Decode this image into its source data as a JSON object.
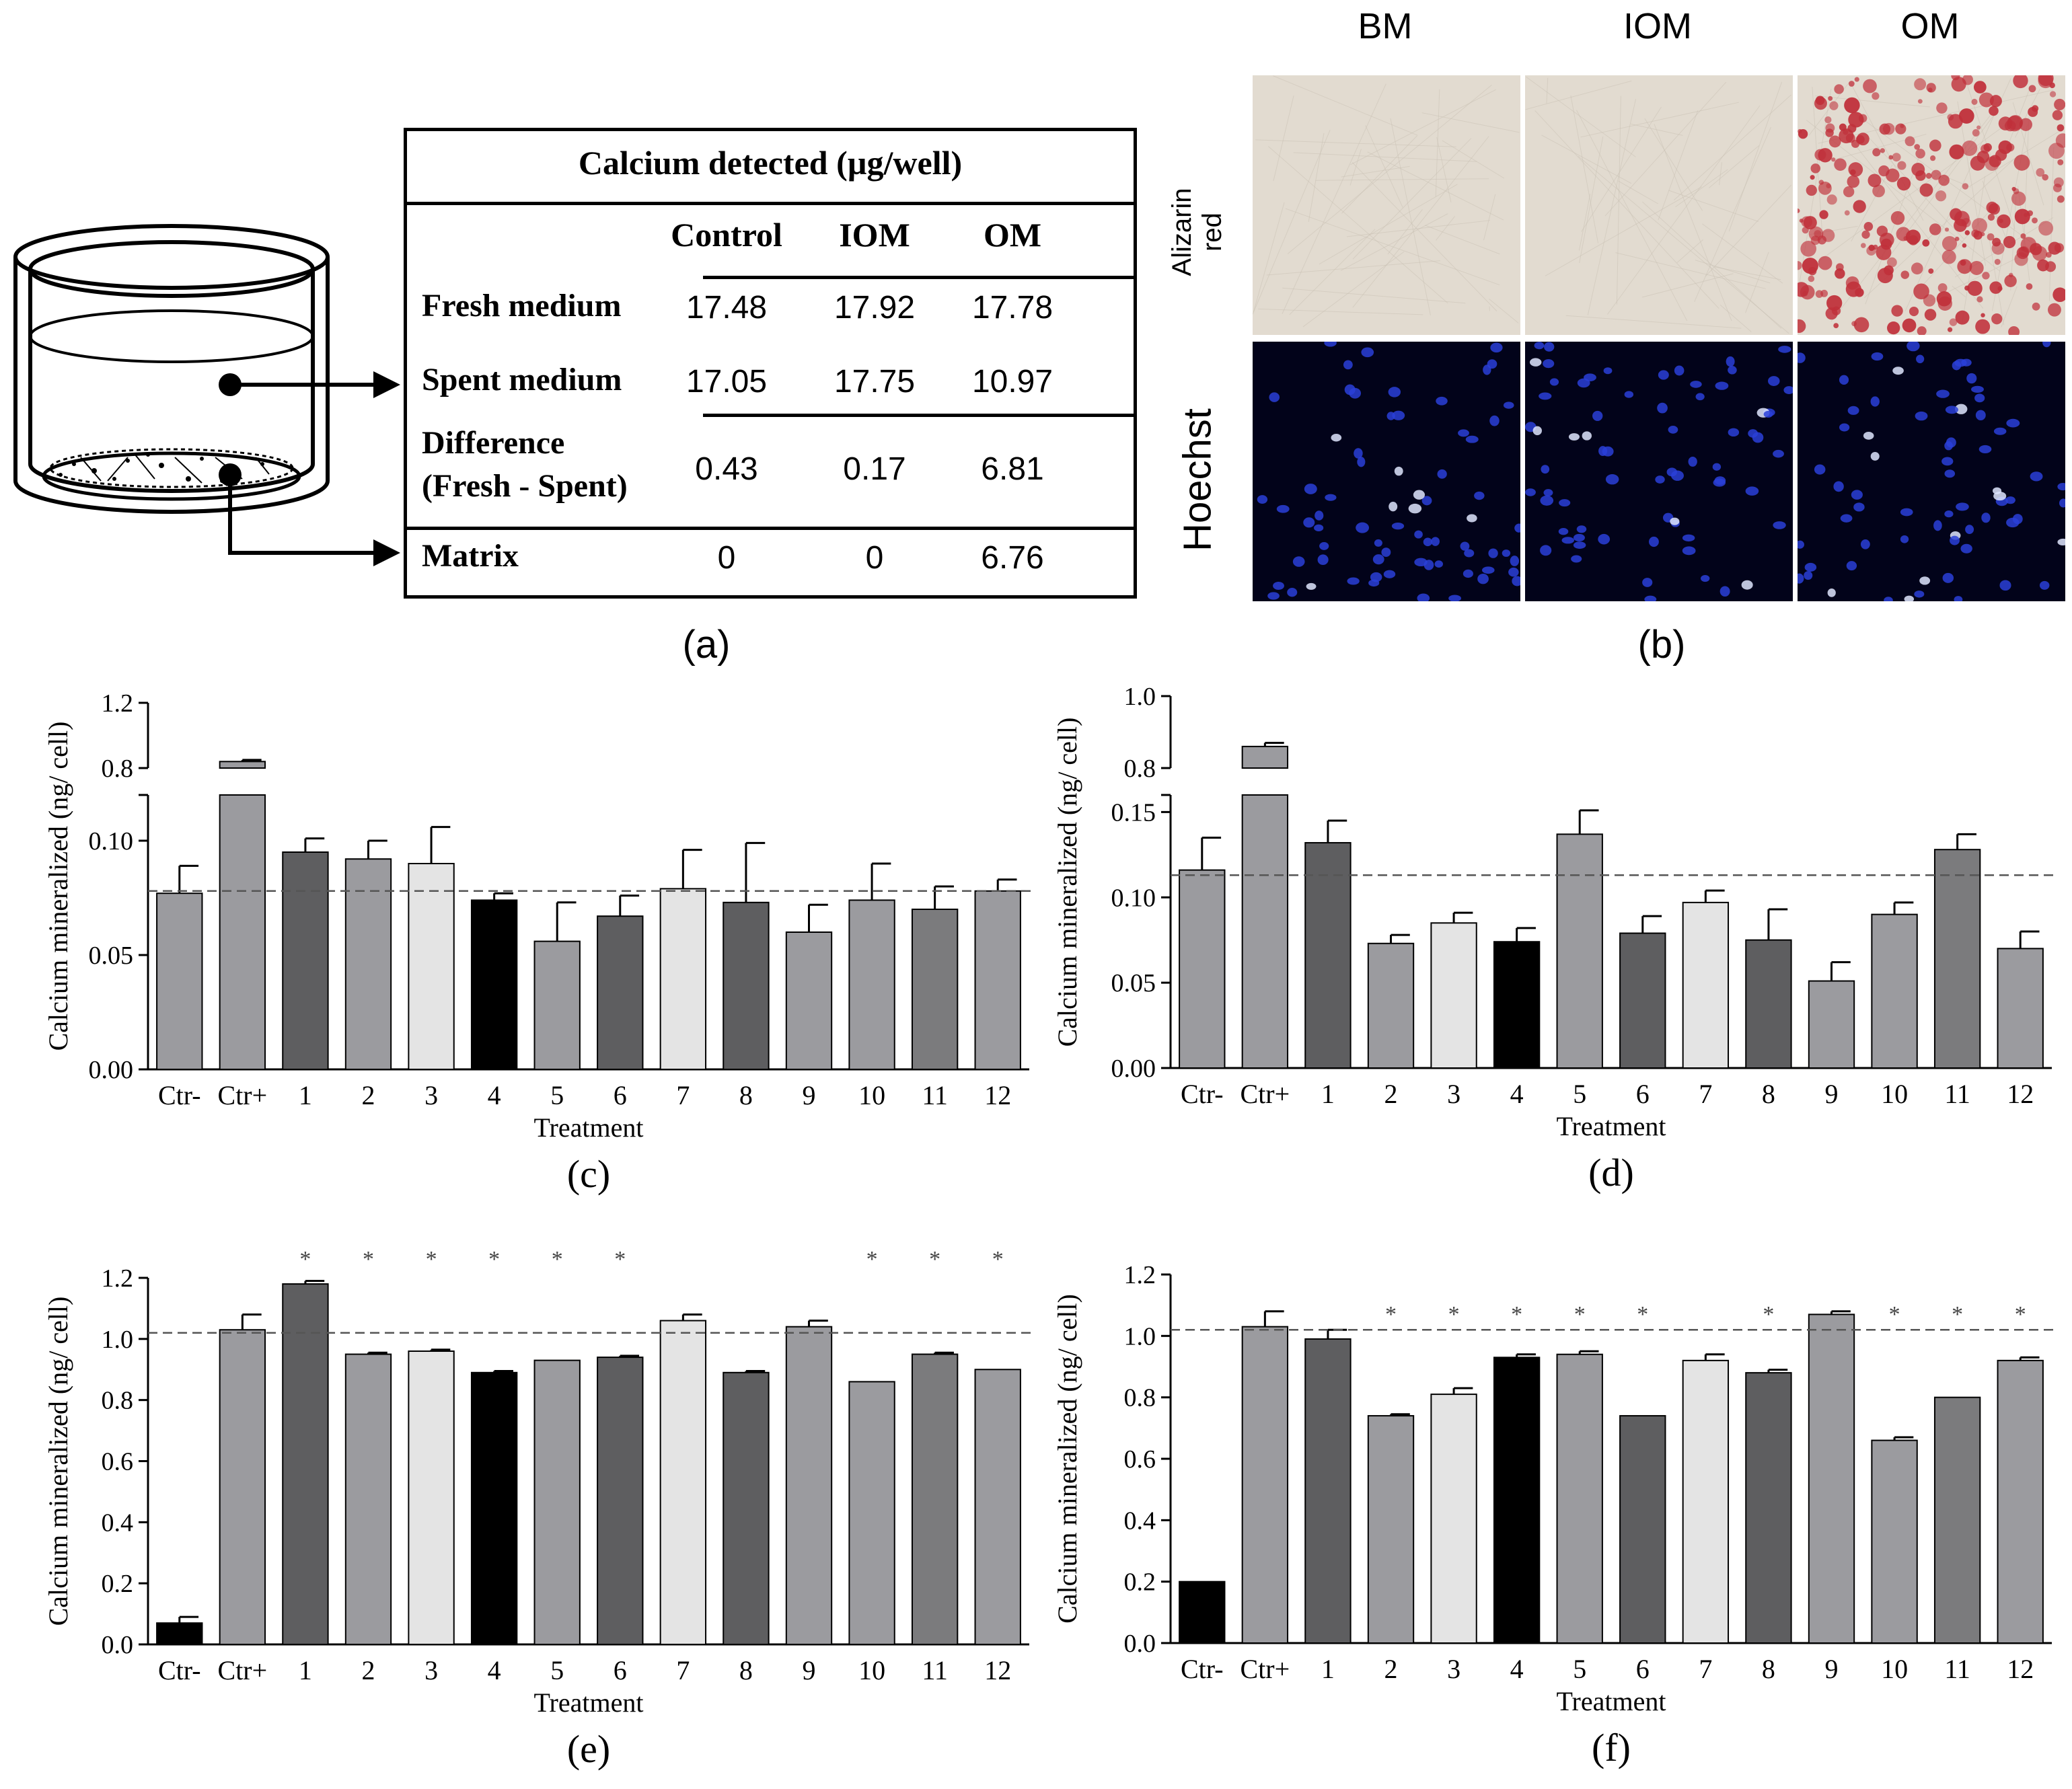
{
  "panel_a": {
    "caption": "(a)",
    "table_title": "Calcium detected (µg/well)",
    "columns": [
      "Control",
      "IOM",
      "OM"
    ],
    "rows": [
      {
        "label": [
          "Fresh medium"
        ],
        "values": [
          "17.48",
          "17.92",
          "17.78"
        ]
      },
      {
        "label": [
          "Spent medium"
        ],
        "values": [
          "17.05",
          "17.75",
          "10.97"
        ]
      },
      {
        "label": [
          "Difference",
          "(Fresh - Spent)"
        ],
        "values": [
          "0.43",
          "0.17",
          "6.81"
        ]
      },
      {
        "label": [
          "Matrix"
        ],
        "values": [
          "0",
          "0",
          "6.76"
        ]
      }
    ]
  },
  "panel_b": {
    "caption": "(b)",
    "columns": [
      "BM",
      "IOM",
      "OM"
    ],
    "rows": [
      "Alizarin red",
      "Hoechst"
    ]
  },
  "colors": {
    "medium_gray": "#9b9b9f",
    "dark_gray": "#5e5e60",
    "darker_gray": "#7b7b7d",
    "light_gray": "#e4e4e4",
    "black": "#000000",
    "alizarin_red": "#c0303a",
    "hoechst_blue": "#2a3fd8"
  },
  "chart_data": [
    {
      "id": "c",
      "caption": "(c)",
      "type": "bar",
      "xlabel": "Treatment",
      "ylabel": "Calcium mineralized (ng/ cell)",
      "categories": [
        "Ctr-",
        "Ctr+",
        "1",
        "2",
        "3",
        "4",
        "5",
        "6",
        "7",
        "8",
        "9",
        "10",
        "11",
        "12"
      ],
      "values": [
        0.077,
        0.84,
        0.095,
        0.092,
        0.09,
        0.074,
        0.056,
        0.067,
        0.079,
        0.073,
        0.06,
        0.074,
        0.07,
        0.078
      ],
      "errors": [
        0.012,
        0.01,
        0.006,
        0.008,
        0.016,
        0.003,
        0.017,
        0.009,
        0.017,
        0.026,
        0.012,
        0.016,
        0.01,
        0.005
      ],
      "shades": [
        "medium",
        "medium",
        "dark",
        "medium",
        "light",
        "black",
        "medium",
        "dark",
        "light",
        "dark",
        "medium",
        "medium",
        "darker",
        "medium"
      ],
      "broken_axis": true,
      "lower_range": [
        0.0,
        0.12
      ],
      "lower_ticks": [
        "0.00",
        "0.05",
        "0.10"
      ],
      "upper_range": [
        0.8,
        1.2
      ],
      "upper_ticks": [
        "0.8",
        "1.2"
      ],
      "reference_line": 0.078,
      "stars": []
    },
    {
      "id": "d",
      "caption": "(d)",
      "type": "bar",
      "xlabel": "Treatment",
      "ylabel": "Calcium mineralized (ng/ cell)",
      "categories": [
        "Ctr-",
        "Ctr+",
        "1",
        "2",
        "3",
        "4",
        "5",
        "6",
        "7",
        "8",
        "9",
        "10",
        "11",
        "12"
      ],
      "values": [
        0.116,
        0.86,
        0.132,
        0.073,
        0.085,
        0.074,
        0.137,
        0.079,
        0.097,
        0.075,
        0.051,
        0.09,
        0.128,
        0.07
      ],
      "errors": [
        0.019,
        0.01,
        0.013,
        0.005,
        0.006,
        0.008,
        0.014,
        0.01,
        0.007,
        0.018,
        0.011,
        0.007,
        0.009,
        0.01
      ],
      "shades": [
        "medium",
        "medium",
        "dark",
        "medium",
        "light",
        "black",
        "medium",
        "dark",
        "light",
        "dark",
        "medium",
        "medium",
        "darker",
        "medium"
      ],
      "broken_axis": true,
      "lower_range": [
        0.0,
        0.16
      ],
      "lower_ticks": [
        "0.00",
        "0.05",
        "0.10",
        "0.15"
      ],
      "upper_range": [
        0.8,
        1.0
      ],
      "upper_ticks": [
        "0.8",
        "1.0"
      ],
      "reference_line": 0.113,
      "stars": []
    },
    {
      "id": "e",
      "caption": "(e)",
      "type": "bar",
      "xlabel": "Treatment",
      "ylabel": "Calcium mineralized (ng/ cell)",
      "categories": [
        "Ctr-",
        "Ctr+",
        "1",
        "2",
        "3",
        "4",
        "5",
        "6",
        "7",
        "8",
        "9",
        "10",
        "11",
        "12"
      ],
      "values": [
        0.07,
        1.03,
        1.18,
        0.95,
        0.96,
        0.89,
        0.93,
        0.94,
        1.06,
        0.89,
        1.04,
        0.86,
        0.95,
        0.9
      ],
      "errors": [
        0.02,
        0.05,
        0.01,
        0.005,
        0.005,
        0.005,
        0.0,
        0.005,
        0.02,
        0.005,
        0.02,
        0.0,
        0.005,
        0.0
      ],
      "shades": [
        "black",
        "medium",
        "dark",
        "medium",
        "light",
        "black",
        "medium",
        "dark",
        "light",
        "dark",
        "medium",
        "medium",
        "darker",
        "medium"
      ],
      "broken_axis": false,
      "range": [
        0.0,
        1.2
      ],
      "ticks": [
        "0.0",
        "0.2",
        "0.4",
        "0.6",
        "0.8",
        "1.0",
        "1.2"
      ],
      "reference_line": 1.02,
      "stars": [
        "",
        "",
        "*",
        "*",
        "*",
        "*",
        "*",
        "*",
        "",
        "",
        "",
        "*",
        "*",
        "*"
      ]
    },
    {
      "id": "f",
      "caption": "(f)",
      "type": "bar",
      "xlabel": "Treatment",
      "ylabel": "Calcium mineralized (ng/ cell)",
      "categories": [
        "Ctr-",
        "Ctr+",
        "1",
        "2",
        "3",
        "4",
        "5",
        "6",
        "7",
        "8",
        "9",
        "10",
        "11",
        "12"
      ],
      "values": [
        0.2,
        1.03,
        0.99,
        0.74,
        0.81,
        0.93,
        0.94,
        0.74,
        0.92,
        0.88,
        1.07,
        0.66,
        0.8,
        0.92
      ],
      "errors": [
        0.0,
        0.05,
        0.03,
        0.005,
        0.02,
        0.01,
        0.01,
        0.0,
        0.02,
        0.01,
        0.01,
        0.01,
        0.0,
        0.01
      ],
      "shades": [
        "black",
        "medium",
        "dark",
        "medium",
        "light",
        "black",
        "medium",
        "dark",
        "light",
        "dark",
        "medium",
        "medium",
        "darker",
        "medium"
      ],
      "broken_axis": false,
      "range": [
        0.0,
        1.2
      ],
      "ticks": [
        "0.0",
        "0.2",
        "0.4",
        "0.6",
        "0.8",
        "1.0",
        "1.2"
      ],
      "reference_line": 1.02,
      "stars": [
        "",
        "",
        "",
        "*",
        "*",
        "*",
        "*",
        "*",
        "",
        "*",
        "",
        "*",
        "*",
        "*"
      ]
    }
  ]
}
